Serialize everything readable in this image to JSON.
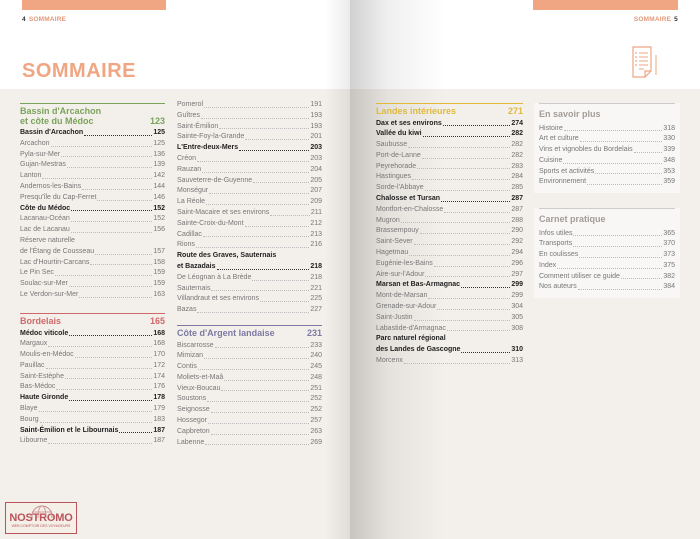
{
  "left_header": {
    "page": "4",
    "label": "SOMMAIRE"
  },
  "right_header": {
    "page": "5",
    "label": "SOMMAIRE"
  },
  "title": "SOMMAIRE",
  "logo": {
    "name": "NOSTROMO",
    "tagline": "WEB COMPTOIR DES VOYAGEURS"
  },
  "colors": {
    "accent": "#f0a583",
    "bassin": "#7aa35a",
    "bordelais": "#d0686a",
    "cote_argent": "#7c7aa3",
    "landes": "#e0b93a",
    "extra": "#a39d98"
  },
  "sections": [
    {
      "id": "bassin",
      "title": "Bassin d'Arcachon\net côte du Médoc",
      "page": "123",
      "items": [
        {
          "t": "Bassin d'Arcachon",
          "p": "125",
          "b": 1
        },
        {
          "t": "Arcachon",
          "p": "125"
        },
        {
          "t": "Pyla-sur-Mer",
          "p": "136"
        },
        {
          "t": "Gujan-Mestras",
          "p": "139"
        },
        {
          "t": "Lanton",
          "p": "142"
        },
        {
          "t": "Andernos-les-Bains",
          "p": "144"
        },
        {
          "t": "Presqu'île du Cap-Ferret",
          "p": "146"
        },
        {
          "t": "Côte du Médoc",
          "p": "152",
          "b": 1
        },
        {
          "t": "Lacanau-Océan",
          "p": "152"
        },
        {
          "t": "Lac de Lacanau",
          "p": "156"
        },
        {
          "t": "Réserve naturelle",
          "p": ""
        },
        {
          "t": "de l'Étang de Cousseau",
          "p": "157"
        },
        {
          "t": "Lac d'Hourtin-Carcans",
          "p": "158"
        },
        {
          "t": "Le Pin Sec",
          "p": "159"
        },
        {
          "t": "Soulac-sur-Mer",
          "p": "159"
        },
        {
          "t": "Le Verdon-sur-Mer",
          "p": "163"
        }
      ]
    },
    {
      "id": "bordelais",
      "title": "Bordelais",
      "page": "165",
      "items": [
        {
          "t": "Médoc viticole",
          "p": "168",
          "b": 1
        },
        {
          "t": "Margaux",
          "p": "168"
        },
        {
          "t": "Moulis-en-Médoc",
          "p": "170"
        },
        {
          "t": "Pauillac",
          "p": "172"
        },
        {
          "t": "Saint-Estèphe",
          "p": "174"
        },
        {
          "t": "Bas-Médoc",
          "p": "176"
        },
        {
          "t": "Haute Gironde",
          "p": "178",
          "b": 1
        },
        {
          "t": "Blaye",
          "p": "179"
        },
        {
          "t": "Bourg",
          "p": "183"
        },
        {
          "t": "Saint-Émilion et le Libournais",
          "p": "187",
          "b": 1
        },
        {
          "t": "Libourne",
          "p": "187"
        }
      ]
    },
    {
      "id": "bordelais2",
      "title": "",
      "page": "",
      "items": [
        {
          "t": "Pomerol",
          "p": "191"
        },
        {
          "t": "Guîtres",
          "p": "193"
        },
        {
          "t": "Saint-Émilion",
          "p": "193"
        },
        {
          "t": "Sainte-Foy-la-Grande",
          "p": "201"
        },
        {
          "t": "L'Entre-deux-Mers",
          "p": "203",
          "b": 1
        },
        {
          "t": "Créon",
          "p": "203"
        },
        {
          "t": "Rauzan",
          "p": "204"
        },
        {
          "t": "Sauveterre-de-Guyenne",
          "p": "205"
        },
        {
          "t": "Monségur",
          "p": "207"
        },
        {
          "t": "La Réole",
          "p": "209"
        },
        {
          "t": "Saint-Macaire et ses environs",
          "p": "211"
        },
        {
          "t": "Sainte-Croix-du-Mont",
          "p": "212"
        },
        {
          "t": "Cadillac",
          "p": "213"
        },
        {
          "t": "Rions",
          "p": "216"
        },
        {
          "t": "Route des Graves, Sauternais",
          "p": "",
          "b": 1
        },
        {
          "t": "et Bazadais",
          "p": "218",
          "b": 1
        },
        {
          "t": "De Léognan à La Brède",
          "p": "218"
        },
        {
          "t": "Sauternais",
          "p": "221"
        },
        {
          "t": "Villandraut et ses environs",
          "p": "225"
        },
        {
          "t": "Bazas",
          "p": "227"
        }
      ]
    },
    {
      "id": "argent",
      "title": "Côte d'Argent landaise",
      "page": "231",
      "items": [
        {
          "t": "Biscarrosse",
          "p": "233"
        },
        {
          "t": "Mimizan",
          "p": "240"
        },
        {
          "t": "Contis",
          "p": "245"
        },
        {
          "t": "Moliets-et-Maâ",
          "p": "248"
        },
        {
          "t": "Vieux-Boucau",
          "p": "251"
        },
        {
          "t": "Soustons",
          "p": "252"
        },
        {
          "t": "Seignosse",
          "p": "252"
        },
        {
          "t": "Hossegor",
          "p": "257"
        },
        {
          "t": "Capbreton",
          "p": "263"
        },
        {
          "t": "Labenne",
          "p": "269"
        }
      ]
    },
    {
      "id": "landes",
      "title": "Landes intérieures",
      "page": "271",
      "items": [
        {
          "t": "Dax et ses environs",
          "p": "274",
          "b": 1
        },
        {
          "t": "Vallée du kiwi",
          "p": "282",
          "b": 1
        },
        {
          "t": "Saubusse",
          "p": "282"
        },
        {
          "t": "Port-de-Lanne",
          "p": "282"
        },
        {
          "t": "Peyrehorade",
          "p": "283"
        },
        {
          "t": "Hastingues",
          "p": "284"
        },
        {
          "t": "Sorde-l'Abbaye",
          "p": "285"
        },
        {
          "t": "Chalosse et Tursan",
          "p": "287",
          "b": 1
        },
        {
          "t": "Montfort-en-Chalosse",
          "p": "287"
        },
        {
          "t": "Mugron",
          "p": "288"
        },
        {
          "t": "Brassempouy",
          "p": "290"
        },
        {
          "t": "Saint-Sever",
          "p": "292"
        },
        {
          "t": "Hagetmau",
          "p": "294"
        },
        {
          "t": "Eugénie-les-Bains",
          "p": "296"
        },
        {
          "t": "Aire-sur-l'Adour",
          "p": "297"
        },
        {
          "t": "Marsan et Bas-Armagnac",
          "p": "299",
          "b": 1
        },
        {
          "t": "Mont-de-Marsan",
          "p": "299"
        },
        {
          "t": "Grenade-sur-Adour",
          "p": "304"
        },
        {
          "t": "Saint-Justin",
          "p": "305"
        },
        {
          "t": "Labastide-d'Armagnac",
          "p": "308"
        },
        {
          "t": "Parc naturel régional",
          "p": "",
          "b": 1
        },
        {
          "t": "des Landes de Gascogne",
          "p": "310",
          "b": 1
        },
        {
          "t": "Morcenx",
          "p": "313"
        }
      ]
    },
    {
      "id": "savoir",
      "title": "En savoir plus",
      "page": "",
      "items": [
        {
          "t": "Histoire",
          "p": "318"
        },
        {
          "t": "Art et culture",
          "p": "330"
        },
        {
          "t": "Vins et vignobles du Bordelais",
          "p": "339"
        },
        {
          "t": "Cuisine",
          "p": "348"
        },
        {
          "t": "Sports et activités",
          "p": "353"
        },
        {
          "t": "Environnement",
          "p": "359"
        }
      ]
    },
    {
      "id": "carnet",
      "title": "Carnet pratique",
      "page": "",
      "items": [
        {
          "t": "Infos utiles",
          "p": "365"
        },
        {
          "t": "Transports",
          "p": "370"
        },
        {
          "t": "En coulisses",
          "p": "373"
        },
        {
          "t": "Index",
          "p": "375"
        },
        {
          "t": "Comment utiliser ce guide",
          "p": "382"
        },
        {
          "t": "Nos auteurs",
          "p": "384"
        }
      ]
    }
  ]
}
